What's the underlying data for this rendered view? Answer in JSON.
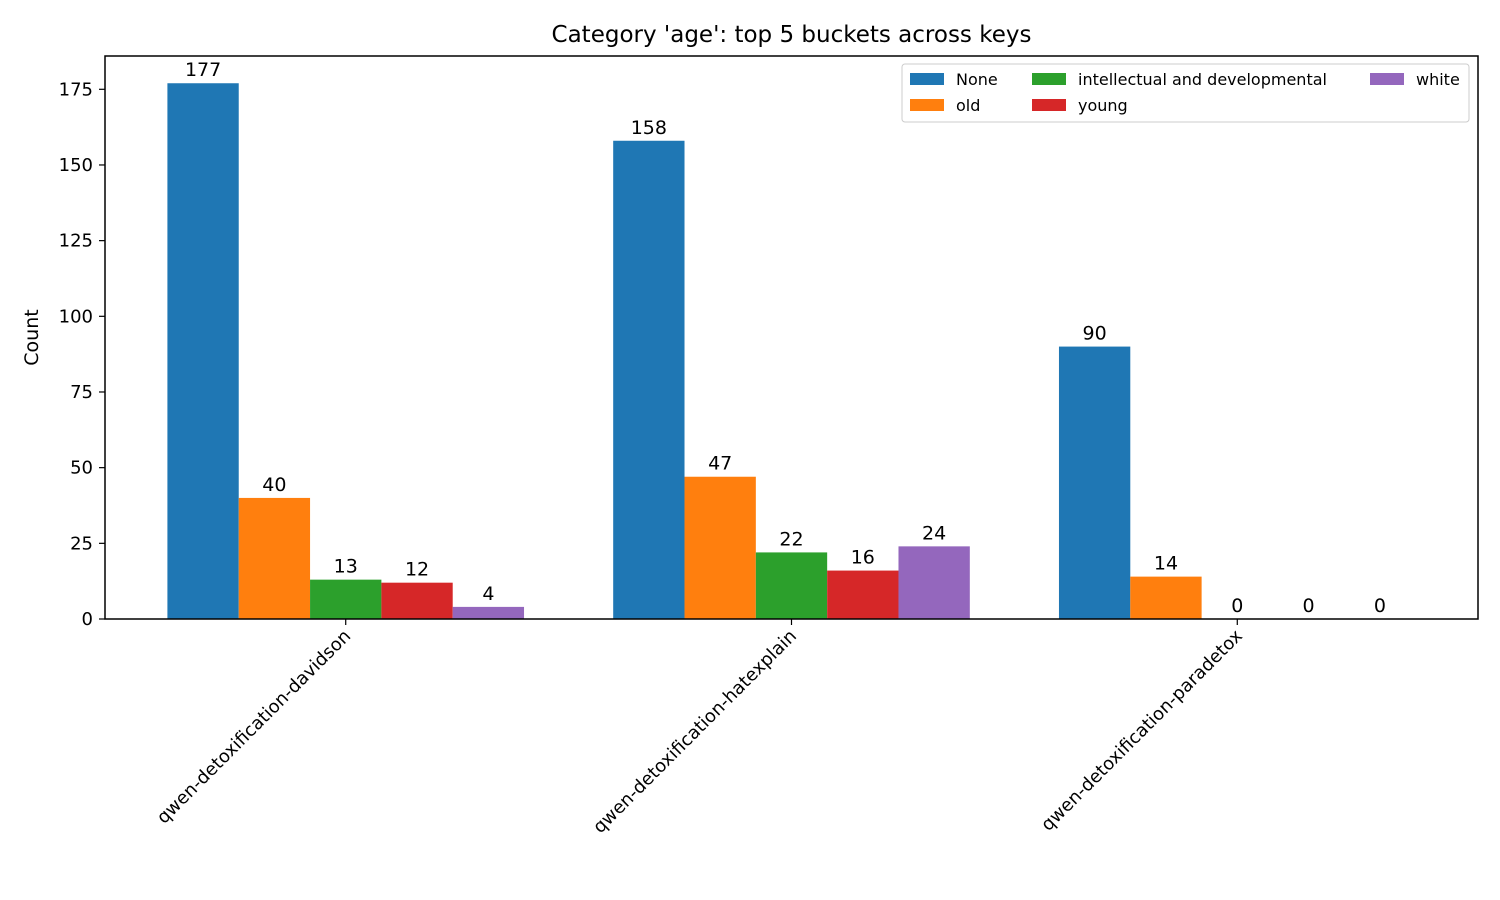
{
  "chart_data": {
    "type": "bar",
    "title": "Category 'age': top 5 buckets across keys",
    "xlabel": "",
    "ylabel": "Count",
    "ylim": [
      0,
      186
    ],
    "yticks": [
      0,
      25,
      50,
      75,
      100,
      125,
      150,
      175
    ],
    "grid": false,
    "legend_position": "top-right",
    "legend_columns": 3,
    "categories": [
      "qwen-detoxification-davidson",
      "qwen-detoxification-hatexplain",
      "qwen-detoxification-paradetox"
    ],
    "series": [
      {
        "name": "None",
        "color": "#1f77b4",
        "values": [
          177,
          158,
          90
        ]
      },
      {
        "name": "old",
        "color": "#ff7f0e",
        "values": [
          40,
          47,
          14
        ]
      },
      {
        "name": "intellectual and developmental",
        "color": "#2ca02c",
        "values": [
          13,
          22,
          0
        ]
      },
      {
        "name": "young",
        "color": "#d62728",
        "values": [
          12,
          16,
          0
        ]
      },
      {
        "name": "white",
        "color": "#9467bd",
        "values": [
          4,
          24,
          0
        ]
      }
    ]
  }
}
